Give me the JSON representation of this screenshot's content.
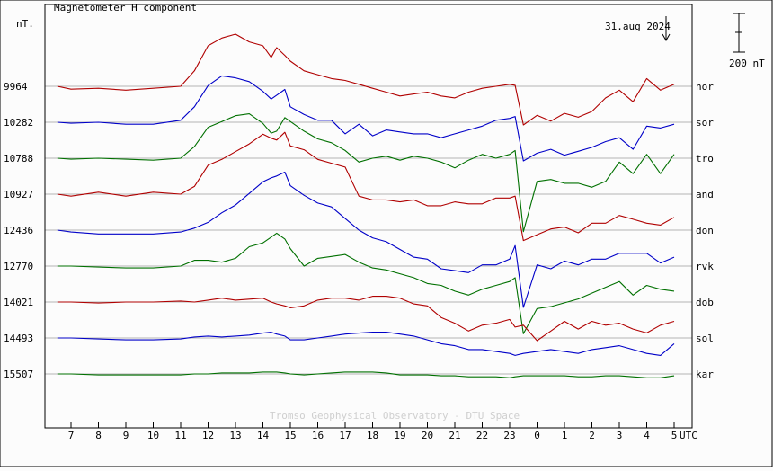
{
  "chart_data": {
    "type": "line",
    "title": "Magnetometer H component",
    "ylabel": "nT.",
    "date_label": "31.aug 2024",
    "scale_label": "200 nT",
    "xlabel": "UTC",
    "credit": "Tromso Geophysical Observatory - DTU Space",
    "x_ticks": [
      "7",
      "8",
      "9",
      "10",
      "11",
      "12",
      "13",
      "14",
      "15",
      "16",
      "17",
      "18",
      "19",
      "20",
      "21",
      "22",
      "23",
      "0",
      "1",
      "2",
      "3",
      "4",
      "5"
    ],
    "colors": {
      "red": "#b00000",
      "blue": "#0000c8",
      "green": "#007000"
    },
    "stations": [
      {
        "code": "nor",
        "baseline": "9964",
        "color": "red"
      },
      {
        "code": "sor",
        "baseline": "10282",
        "color": "blue"
      },
      {
        "code": "tro",
        "baseline": "10788",
        "color": "green"
      },
      {
        "code": "and",
        "baseline": "10927",
        "color": "red"
      },
      {
        "code": "don",
        "baseline": "12436",
        "color": "blue"
      },
      {
        "code": "rvk",
        "baseline": "12770",
        "color": "green"
      },
      {
        "code": "dob",
        "baseline": "14021",
        "color": "red"
      },
      {
        "code": "sol",
        "baseline": "14493",
        "color": "blue"
      },
      {
        "code": "kar",
        "baseline": "15507",
        "color": "green"
      }
    ],
    "x_hours": [
      6.5,
      7,
      8,
      9,
      10,
      11,
      11.5,
      12,
      12.5,
      13,
      13.5,
      14,
      14.3,
      14.5,
      14.8,
      15,
      15.5,
      16,
      16.5,
      17,
      17.5,
      18,
      18.5,
      19,
      19.5,
      20,
      20.5,
      21,
      21.5,
      22,
      22.5,
      23,
      23.2,
      23.5,
      24,
      24.5,
      25,
      25.5,
      26,
      26.5,
      27,
      27.5,
      28,
      28.5,
      29
    ],
    "series_nT": [
      [
        0,
        -15,
        -10,
        -20,
        -10,
        0,
        80,
        210,
        250,
        270,
        230,
        210,
        150,
        200,
        160,
        130,
        80,
        60,
        40,
        30,
        10,
        -10,
        -30,
        -50,
        -40,
        -30,
        -50,
        -60,
        -30,
        -10,
        0,
        10,
        5,
        -200,
        -150,
        -180,
        -140,
        -160,
        -130,
        -60,
        -20,
        -80,
        40,
        -20,
        10
      ],
      [
        0,
        -5,
        0,
        -10,
        -10,
        10,
        80,
        190,
        240,
        230,
        210,
        160,
        120,
        140,
        170,
        80,
        40,
        10,
        10,
        -60,
        -10,
        -70,
        -40,
        -50,
        -60,
        -60,
        -80,
        -60,
        -40,
        -20,
        10,
        20,
        30,
        -200,
        -160,
        -140,
        -170,
        -150,
        -130,
        -100,
        -80,
        -140,
        -20,
        -30,
        -10
      ],
      [
        0,
        -5,
        0,
        -5,
        -10,
        0,
        60,
        160,
        190,
        220,
        230,
        180,
        130,
        140,
        210,
        190,
        140,
        100,
        80,
        40,
        -20,
        0,
        10,
        -10,
        10,
        0,
        -20,
        -50,
        -10,
        20,
        0,
        20,
        40,
        -380,
        -120,
        -110,
        -130,
        -130,
        -150,
        -120,
        -20,
        -80,
        20,
        -80,
        20
      ],
      [
        0,
        -10,
        10,
        -10,
        10,
        0,
        40,
        150,
        180,
        220,
        260,
        310,
        290,
        280,
        320,
        250,
        230,
        180,
        160,
        140,
        -10,
        -30,
        -30,
        -40,
        -30,
        -60,
        -60,
        -40,
        -50,
        -50,
        -20,
        -20,
        -10,
        -240,
        -210,
        -180,
        -170,
        -200,
        -150,
        -150,
        -110,
        -130,
        -150,
        -160,
        -120
      ],
      [
        0,
        -10,
        -20,
        -20,
        -20,
        -10,
        10,
        40,
        90,
        130,
        190,
        250,
        270,
        280,
        300,
        230,
        180,
        140,
        120,
        60,
        0,
        -40,
        -60,
        -100,
        -140,
        -150,
        -200,
        -210,
        -220,
        -180,
        -180,
        -150,
        -80,
        -400,
        -180,
        -200,
        -160,
        -180,
        -150,
        -150,
        -120,
        -120,
        -120,
        -170,
        -140
      ],
      [
        0,
        0,
        -5,
        -10,
        -10,
        0,
        30,
        30,
        20,
        40,
        100,
        120,
        150,
        170,
        140,
        90,
        0,
        40,
        50,
        60,
        20,
        -10,
        -20,
        -40,
        -60,
        -90,
        -100,
        -130,
        -150,
        -120,
        -100,
        -80,
        -60,
        -350,
        -220,
        -210,
        -190,
        -170,
        -140,
        -110,
        -80,
        -150,
        -100,
        -120,
        -130
      ],
      [
        0,
        0,
        -5,
        0,
        0,
        5,
        0,
        10,
        20,
        10,
        15,
        20,
        0,
        -10,
        -20,
        -30,
        -20,
        10,
        20,
        20,
        10,
        30,
        30,
        20,
        -10,
        -20,
        -80,
        -110,
        -150,
        -120,
        -110,
        -90,
        -130,
        -120,
        -200,
        -150,
        -100,
        -140,
        -100,
        -120,
        -110,
        -140,
        -160,
        -120,
        -100
      ],
      [
        0,
        0,
        -5,
        -10,
        -10,
        -5,
        5,
        10,
        5,
        10,
        15,
        25,
        30,
        20,
        10,
        -10,
        -10,
        0,
        10,
        20,
        25,
        30,
        30,
        20,
        10,
        -10,
        -30,
        -40,
        -60,
        -60,
        -70,
        -80,
        -90,
        -80,
        -70,
        -60,
        -70,
        -80,
        -60,
        -50,
        -40,
        -60,
        -80,
        -90,
        -30
      ],
      [
        0,
        0,
        -5,
        -5,
        -5,
        -5,
        0,
        0,
        5,
        5,
        5,
        10,
        10,
        10,
        5,
        0,
        -5,
        0,
        5,
        10,
        10,
        10,
        5,
        -5,
        -5,
        -5,
        -10,
        -10,
        -15,
        -15,
        -15,
        -20,
        -15,
        -10,
        -10,
        -10,
        -10,
        -15,
        -15,
        -10,
        -10,
        -15,
        -20,
        -20,
        -10
      ]
    ]
  }
}
